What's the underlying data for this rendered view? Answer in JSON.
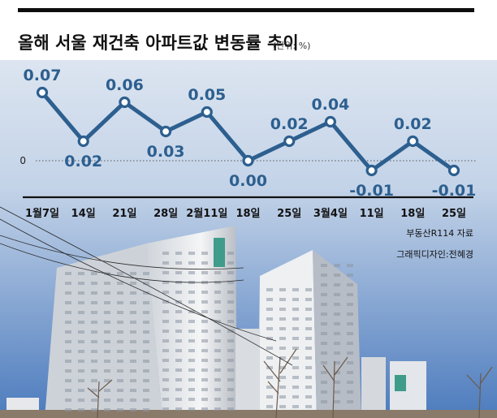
{
  "header": {
    "title": "올해 서울 재건축 아파트값 변동률 추이",
    "unit": "(단위: %)"
  },
  "credits": {
    "source": "부동산R114 자료",
    "designer": "그래픽디자인:전혜경"
  },
  "colors": {
    "line": "#2d5f8f",
    "value_text": "#2d5f8f",
    "point_fill": "#ffffff",
    "header_band": "#ffffff",
    "sky_top": "#e8edf4",
    "sky_bottom": "#4c7bbd",
    "axis": "#111111"
  },
  "chart_data": {
    "type": "line",
    "title": "올해 서울 재건축 아파트값 변동률 추이",
    "ylabel": "",
    "xlabel": "",
    "categories": [
      "1월7일",
      "14일",
      "21일",
      "28일",
      "2월11일",
      "18일",
      "25일",
      "3월4일",
      "11일",
      "18일",
      "25일"
    ],
    "series": [
      {
        "values": [
          0.07,
          0.02,
          0.06,
          0.03,
          0.05,
          0.0,
          0.02,
          0.04,
          -0.01,
          0.02,
          -0.01
        ]
      }
    ],
    "value_labels": [
      "0.07",
      "0.02",
      "0.06",
      "0.03",
      "0.05",
      "0.00",
      "0.02",
      "0.04",
      "-0.01",
      "0.02",
      "-0.01"
    ],
    "label_position": [
      "above",
      "below",
      "above",
      "below",
      "above",
      "below",
      "above",
      "above",
      "below",
      "above",
      "below"
    ],
    "ylim": [
      -0.01,
      0.07
    ],
    "zero_label": "0",
    "reference_line": {
      "value": 0,
      "style": "dotted"
    },
    "grid": false,
    "legend": "none"
  }
}
